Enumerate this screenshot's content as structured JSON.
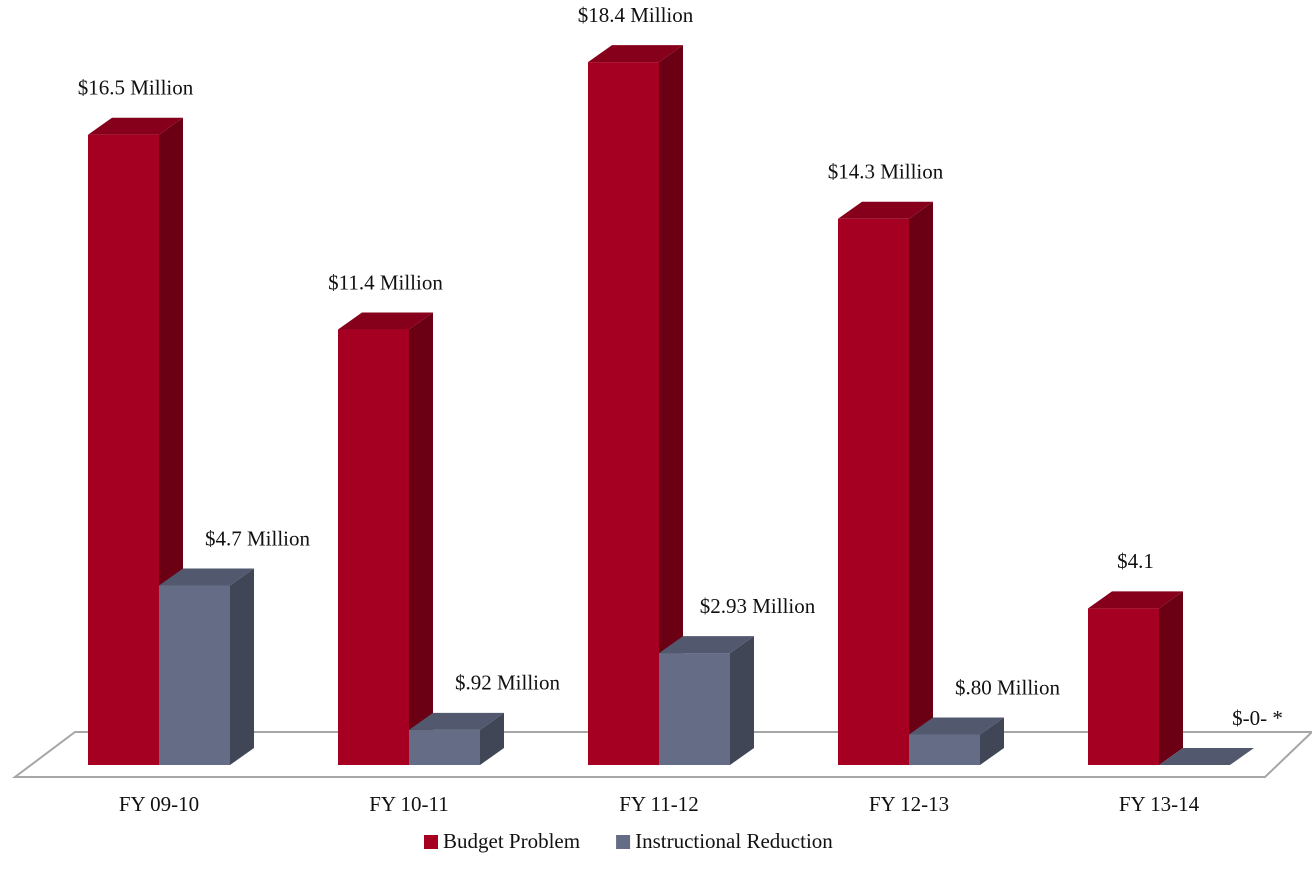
{
  "chart_data": {
    "type": "bar3d",
    "categories": [
      "FY 09-10",
      "FY 10-11",
      "FY 11-12",
      "FY 12-13",
      "FY 13-14"
    ],
    "series": [
      {
        "name": "Budget Problem",
        "color": "#a50021",
        "values": [
          16.5,
          11.4,
          18.4,
          14.3,
          4.1
        ],
        "value_labels": [
          "$16.5 Million",
          "$11.4 Million",
          "$18.4 Million",
          "$14.3 Million",
          "$4.1"
        ]
      },
      {
        "name": "Instructional Reduction",
        "color": "#646c86",
        "values": [
          4.7,
          0.92,
          2.93,
          0.8,
          0
        ],
        "value_labels": [
          "$4.7 Million",
          "$.92 Million",
          "$2.93 Million",
          "$.80 Million",
          "$-0- *"
        ]
      }
    ],
    "legend": "bottom"
  }
}
